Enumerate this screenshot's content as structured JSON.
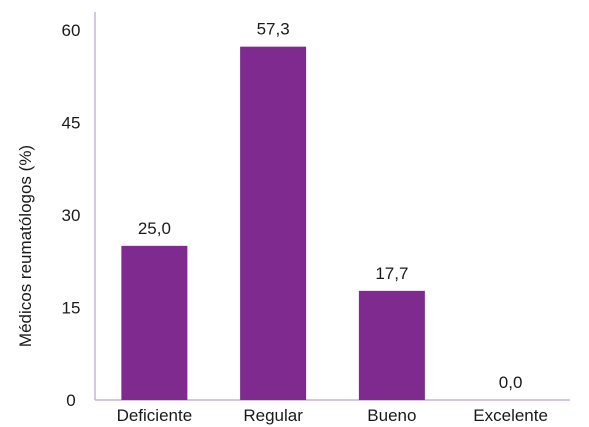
{
  "chart_data": {
    "type": "bar",
    "title": "",
    "xlabel": "",
    "ylabel": "Médicos reumatólogos (%)",
    "categories": [
      "Deficiente",
      "Regular",
      "Bueno",
      "Excelente"
    ],
    "values": [
      25.0,
      57.3,
      17.7,
      0.0
    ],
    "value_labels": [
      "25,0",
      "57,3",
      "17,7",
      "0,0"
    ],
    "ylim": [
      0,
      60
    ],
    "yticks": [
      0,
      15,
      30,
      45,
      60
    ],
    "ytick_labels": [
      "0",
      "15",
      "30",
      "45",
      "60"
    ],
    "grid": false,
    "legend": "none",
    "bar_color": "#7f2a8f",
    "axis_color": "#c8b4d4"
  }
}
